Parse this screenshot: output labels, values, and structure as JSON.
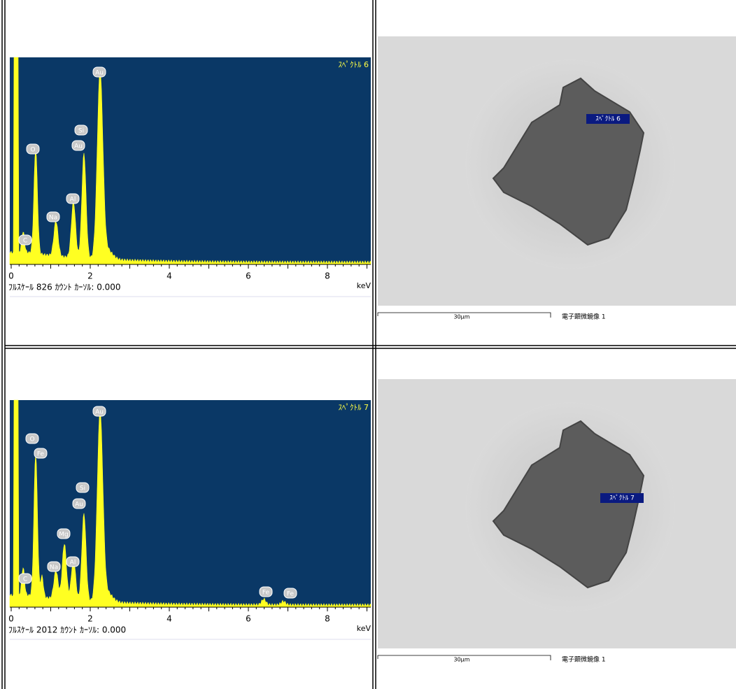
{
  "rows": [
    {
      "spectrum": {
        "label": "ｽﾍﾟｸﾄﾙ 6",
        "peaks": [
          "Au",
          "Si",
          "Au",
          "O",
          "Al",
          "Na",
          "C"
        ],
        "x_ticks": [
          0,
          2,
          4,
          6,
          8
        ],
        "unit": "keV",
        "caption": "ﾌﾙｽｹｰﾙ 826 ｶｳﾝﾄ ｶｰｿﾙ: 0.000"
      },
      "image": {
        "label": "ｽﾍﾟｸﾄﾙ 6",
        "scale": "30μm",
        "caption": "電子顕微鏡像 1"
      }
    },
    {
      "spectrum": {
        "label": "ｽﾍﾟｸﾄﾙ 7",
        "peaks": [
          "Au",
          "O",
          "Fe",
          "Si",
          "Au",
          "Mg",
          "Na",
          "Al",
          "C",
          "Fe",
          "Fe"
        ],
        "x_ticks": [
          0,
          2,
          4,
          6,
          8
        ],
        "unit": "keV",
        "caption": "ﾌﾙｽｹｰﾙ 2012 ｶｳﾝﾄ ｶｰｿﾙ: 0.000"
      },
      "image": {
        "label": "ｽﾍﾟｸﾄﾙ 7",
        "scale": "30μm",
        "caption": "電子顕微鏡像 1"
      }
    }
  ]
}
